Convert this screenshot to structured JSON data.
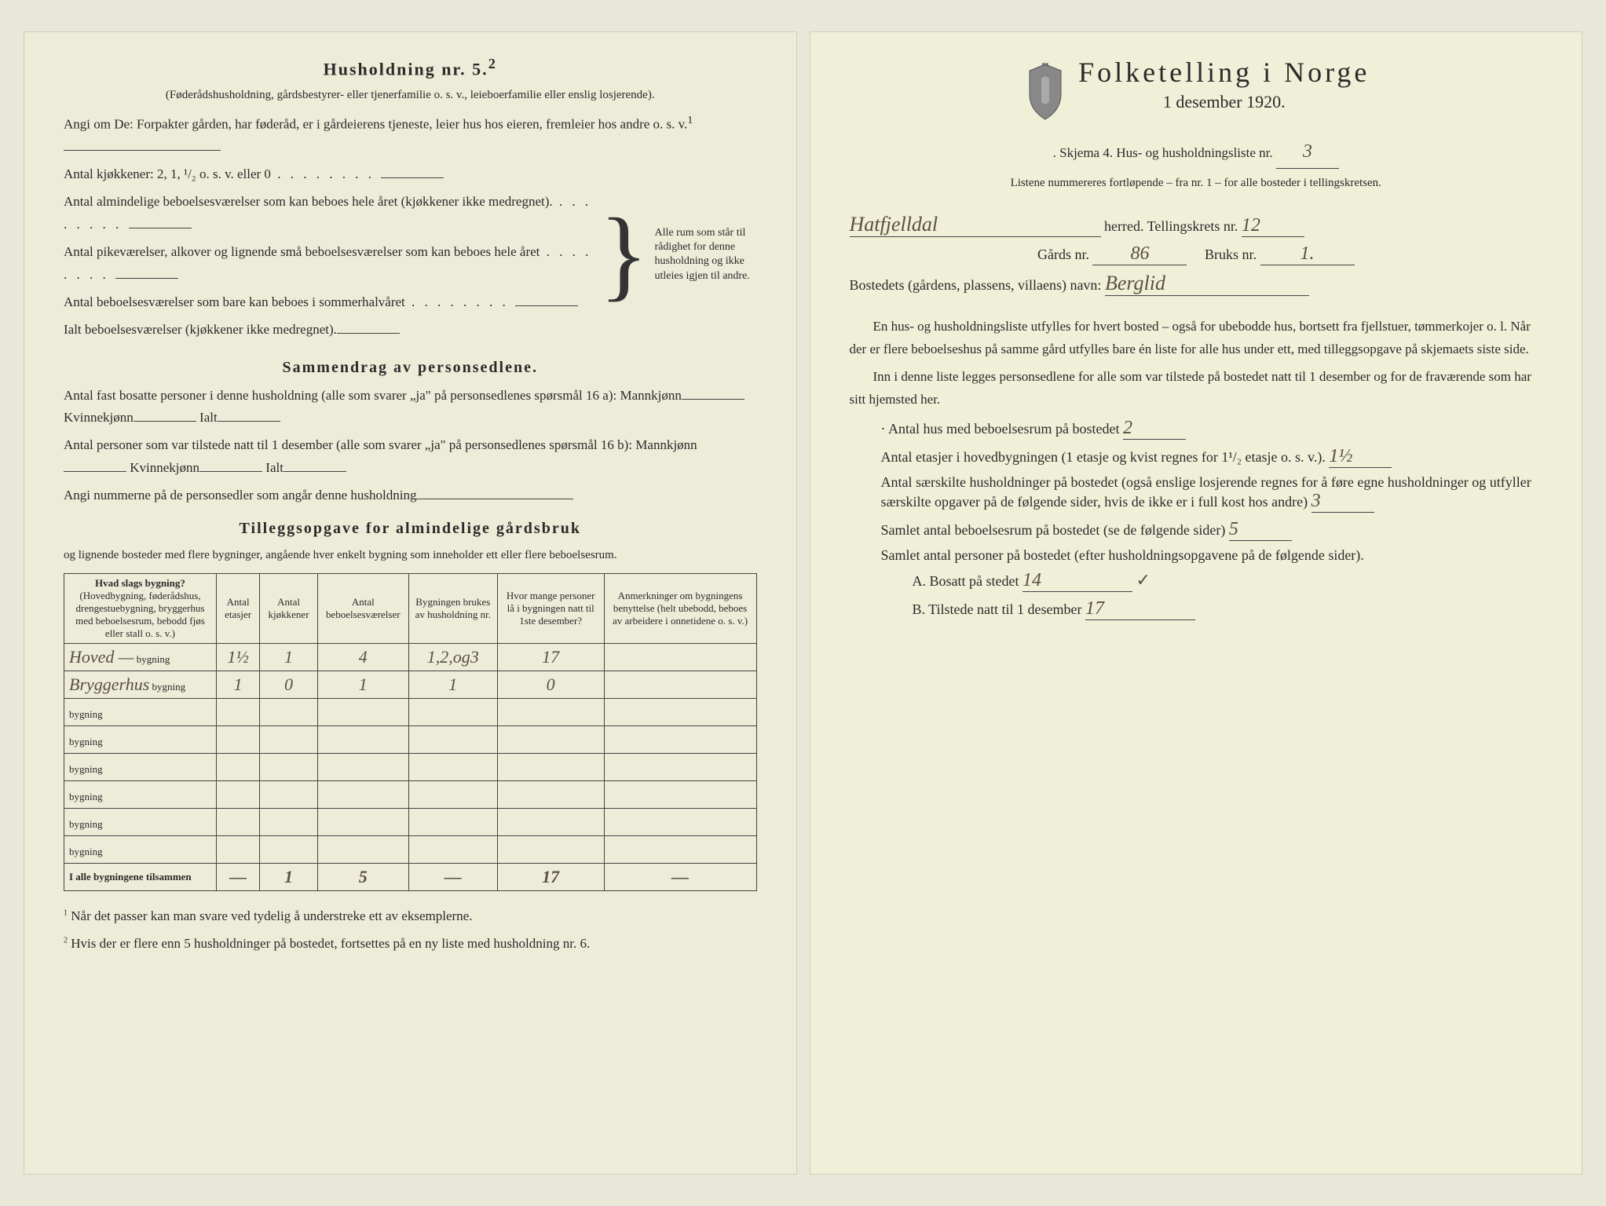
{
  "colors": {
    "paper": "#edecd8",
    "paper_right": "#f0efd8",
    "ink": "#2a2a2a",
    "handwriting": "#5a5040",
    "border": "#444444"
  },
  "left": {
    "heading": "Husholdning nr. 5.",
    "heading_sup": "2",
    "sub1": "(Føderådshusholdning, gårdsbestyrer- eller tjenerfamilie o. s. v., leieboerfamilie eller enslig losjerende).",
    "sub2": "Angi om De: Forpakter gården, har føderåd, er i gårdeierens tjeneste, leier hus hos eieren, fremleier hos andre o. s. v.",
    "sub2_sup": "1",
    "kitchens_label": "Antal kjøkkener: 2, 1, ¹/₂ o. s. v. eller 0",
    "rooms1": "Antal almindelige beboelsesværelser som kan beboes hele året (kjøkkener ikke medregnet).",
    "rooms2": "Antal pikeværelser, alkover og lignende små beboelsesværelser som kan beboes hele året",
    "rooms3": "Antal beboelsesværelser som bare kan beboes i sommerhalvåret",
    "rooms_total": "Ialt beboelsesværelser (kjøkkener ikke medregnet).",
    "brace_text": "Alle rum som står til rådighet for denne husholdning og ikke utleies igjen til andre.",
    "summary_heading": "Sammendrag av personsedlene.",
    "summary1": "Antal fast bosatte personer i denne husholdning (alle som svarer „ja\" på personsedlenes spørsmål 16 a): Mannkjønn",
    "summary1_b": "Kvinnekjønn",
    "summary1_c": "Ialt",
    "summary2": "Antal personer som var tilstede natt til 1 desember (alle som svarer „ja\" på personsedlenes spørsmål 16 b): Mannkjønn",
    "summary2_b": "Kvinnekjønn",
    "summary2_c": "Ialt",
    "summary3": "Angi nummerne på de personsedler som angår denne husholdning",
    "tillegg_heading": "Tilleggsopgave for almindelige gårdsbruk",
    "tillegg_sub": "og lignende bosteder med flere bygninger, angående hver enkelt bygning som inneholder ett eller flere beboelsesrum.",
    "table": {
      "headers": [
        "Hvad slags bygning?",
        "Antal etasjer",
        "Antal kjøkkener",
        "Antal beboelsesværelser",
        "Bygningen brukes av husholdning nr.",
        "Hvor mange personer lå i bygningen natt til 1ste desember?",
        "Anmerkninger om bygningens benyttelse (helt ubebodd, beboes av arbeidere i onnetidene o. s. v.)"
      ],
      "header1_sub": "(Hovedbygning, føderådshus, drengestuebygning, bryggerhus med beboelsesrum, bebodd fjøs eller stall o. s. v.)",
      "row_suffix": "bygning",
      "rows": [
        {
          "name": "Hoved —",
          "etasjer": "1½",
          "kjokken": "1",
          "beboelse": "4",
          "hushold": "1,2,og3",
          "personer": "17",
          "anm": ""
        },
        {
          "name": "Bryggerhus",
          "etasjer": "1",
          "kjokken": "0",
          "beboelse": "1",
          "hushold": "1",
          "personer": "0",
          "anm": ""
        },
        {
          "name": "",
          "etasjer": "",
          "kjokken": "",
          "beboelse": "",
          "hushold": "",
          "personer": "",
          "anm": ""
        },
        {
          "name": "",
          "etasjer": "",
          "kjokken": "",
          "beboelse": "",
          "hushold": "",
          "personer": "",
          "anm": ""
        },
        {
          "name": "",
          "etasjer": "",
          "kjokken": "",
          "beboelse": "",
          "hushold": "",
          "personer": "",
          "anm": ""
        },
        {
          "name": "",
          "etasjer": "",
          "kjokken": "",
          "beboelse": "",
          "hushold": "",
          "personer": "",
          "anm": ""
        },
        {
          "name": "",
          "etasjer": "",
          "kjokken": "",
          "beboelse": "",
          "hushold": "",
          "personer": "",
          "anm": ""
        },
        {
          "name": "",
          "etasjer": "",
          "kjokken": "",
          "beboelse": "",
          "hushold": "",
          "personer": "",
          "anm": ""
        }
      ],
      "totals_label": "I alle bygningene tilsammen",
      "totals": {
        "etasjer": "—",
        "kjokken": "1",
        "beboelse": "5",
        "hushold": "—",
        "personer": "17",
        "anm": "—"
      }
    },
    "footnote1": "Når det passer kan man svare ved tydelig å understreke ett av eksemplerne.",
    "footnote2": "Hvis der er flere enn 5 husholdninger på bostedet, fortsettes på en ny liste med husholdning nr. 6."
  },
  "right": {
    "title": "Folketelling i Norge",
    "date": "1 desember 1920.",
    "skjema": "Skjema 4.   Hus- og husholdningsliste nr.",
    "skjema_nr": "3",
    "listene": "Listene nummereres fortløpende – fra nr. 1 – for alle bosteder i tellingskretsen.",
    "herred_value": "Hatfjelldal",
    "herred_label": "herred.   Tellingskrets nr.",
    "tellingskrets_nr": "12",
    "gards_label": "Gårds nr.",
    "gards_nr": "86",
    "bruks_label": "Bruks nr.",
    "bruks_nr": "1.",
    "bosted_label": "Bostedets (gårdens, plassens, villaens) navn:",
    "bosted_value": "Berglid",
    "para1": "En hus- og husholdningsliste utfylles for hvert bosted – også for ubebodde hus, bortsett fra fjellstuer, tømmerkojer o. l. Når der er flere beboelseshus på samme gård utfylles bare én liste for alle hus under ett, med tilleggsopgave på skjemaets siste side.",
    "para2": "Inn i denne liste legges personsedlene for alle som var tilstede på bostedet natt til 1 desember og for de fraværende som har sitt hjemsted her.",
    "q1_label": "Antal hus med beboelsesrum på bostedet",
    "q1_value": "2",
    "q2_label": "Antal etasjer i hovedbygningen (1 etasje og kvist regnes for 1¹/₂ etasje o. s. v.).",
    "q2_value": "1½",
    "q3_label": "Antal særskilte husholdninger på bostedet (også enslige losjerende regnes for å føre egne husholdninger og utfyller særskilte opgaver på de følgende sider, hvis de ikke er i full kost hos andre)",
    "q3_value": "3",
    "q4_label": "Samlet antal beboelsesrum på bostedet (se de følgende sider)",
    "q4_value": "5",
    "q5_label": "Samlet antal personer på bostedet (efter husholdningsopgavene på de følgende sider).",
    "q5a_label": "A. Bosatt på stedet",
    "q5a_value": "14",
    "q5a_check": "✓",
    "q5b_label": "B. Tilstede natt til 1 desember",
    "q5b_value": "17"
  }
}
